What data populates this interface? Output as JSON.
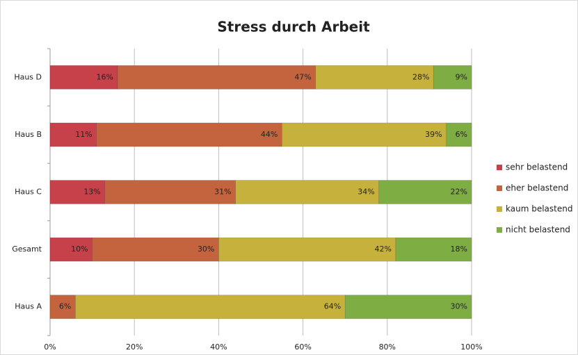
{
  "chart_data": {
    "type": "stacked_barh",
    "title": "Stress durch Arbeit",
    "categories": [
      "Haus D",
      "Haus B",
      "Haus C",
      "Gesamt",
      "Haus A"
    ],
    "series": [
      {
        "name": "sehr belastend",
        "color": "#c6414a",
        "values": [
          16,
          11,
          13,
          10,
          null
        ],
        "value_labels": [
          "16%",
          "11%",
          "13%",
          "10%",
          null
        ]
      },
      {
        "name": "eher belastend",
        "color": "#c4643e",
        "values": [
          47,
          44,
          31,
          30,
          6
        ],
        "value_labels": [
          "47%",
          "44%",
          "31%",
          "30%",
          "6%"
        ]
      },
      {
        "name": "kaum belastend",
        "color": "#c6b13c",
        "values": [
          28,
          39,
          34,
          42,
          64
        ],
        "value_labels": [
          "28%",
          "39%",
          "34%",
          "42%",
          "64%"
        ]
      },
      {
        "name": "nicht belastend",
        "color": "#7dad43",
        "values": [
          9,
          6,
          22,
          18,
          30
        ],
        "value_labels": [
          "9%",
          "6%",
          "22%",
          "18%",
          "30%"
        ]
      }
    ],
    "xlim": [
      0,
      100
    ],
    "xticks": [
      {
        "value": 0,
        "label": "0%"
      },
      {
        "value": 20,
        "label": "20%"
      },
      {
        "value": 40,
        "label": "40%"
      },
      {
        "value": 60,
        "label": "60%"
      },
      {
        "value": 80,
        "label": "80%"
      },
      {
        "value": 100,
        "label": "100%"
      }
    ],
    "grid": true,
    "legend": "right"
  }
}
